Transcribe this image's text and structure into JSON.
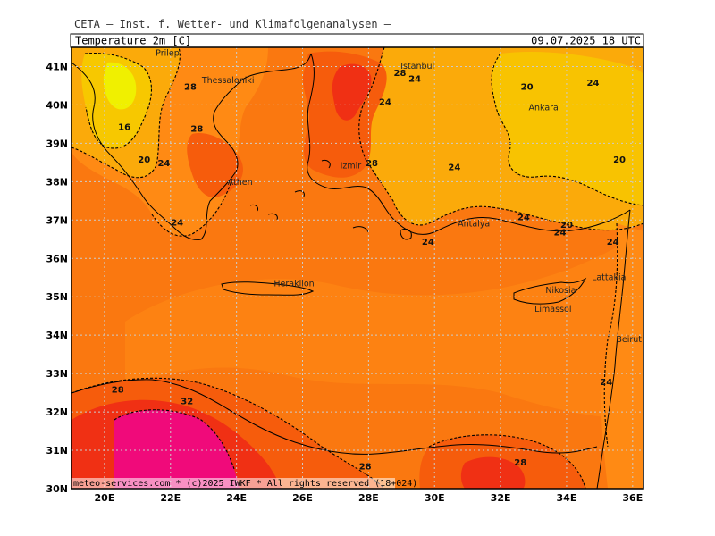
{
  "header": {
    "institution": "CETA — Inst. f. Wetter- und Klimafolgenanalysen —",
    "variable": "Temperature 2m [C]",
    "valid_time": "09.07.2025 18 UTC"
  },
  "footer": {
    "credit": "meteo-services.com * (c)2025 IWKF * All rights reserved (18+024)"
  },
  "axes": {
    "lon_labels": [
      "20E",
      "22E",
      "24E",
      "26E",
      "28E",
      "30E",
      "32E",
      "34E",
      "36E"
    ],
    "lat_labels": [
      "41N",
      "40N",
      "39N",
      "38N",
      "37N",
      "36N",
      "35N",
      "34N",
      "33N",
      "32N",
      "31N",
      "30N"
    ]
  },
  "cities": [
    {
      "name": "Prilep",
      "lon": 21.55,
      "lat": 41.35
    },
    {
      "name": "Thessaloniki",
      "lon": 22.95,
      "lat": 40.64
    },
    {
      "name": "Istanbul",
      "lon": 28.97,
      "lat": 41.01
    },
    {
      "name": "Ankara",
      "lon": 32.85,
      "lat": 39.93
    },
    {
      "name": "Izmir",
      "lon": 27.14,
      "lat": 38.42
    },
    {
      "name": "Athen",
      "lon": 23.73,
      "lat": 37.98
    },
    {
      "name": "Antalya",
      "lon": 30.7,
      "lat": 36.9
    },
    {
      "name": "Lattakia",
      "lon": 35.8,
      "lat": 35.5
    },
    {
      "name": "Nikosia",
      "lon": 33.36,
      "lat": 35.17
    },
    {
      "name": "Limassol",
      "lon": 33.03,
      "lat": 34.68
    },
    {
      "name": "Heraklion",
      "lon": 25.13,
      "lat": 35.34
    },
    {
      "name": "Beirut",
      "lon": 35.5,
      "lat": 33.89
    }
  ],
  "isotherm_labels": [
    {
      "value": "28",
      "lon": 22.6,
      "lat": 40.4
    },
    {
      "value": "16",
      "lon": 20.6,
      "lat": 39.35
    },
    {
      "value": "20",
      "lon": 21.2,
      "lat": 38.5
    },
    {
      "value": "24",
      "lon": 21.8,
      "lat": 38.4
    },
    {
      "value": "28",
      "lon": 22.8,
      "lat": 39.3
    },
    {
      "value": "24",
      "lon": 22.2,
      "lat": 36.85
    },
    {
      "value": "28",
      "lon": 28.95,
      "lat": 40.75
    },
    {
      "value": "24",
      "lon": 29.4,
      "lat": 40.6
    },
    {
      "value": "24",
      "lon": 28.5,
      "lat": 40.0
    },
    {
      "value": "20",
      "lon": 32.8,
      "lat": 40.4
    },
    {
      "value": "24",
      "lon": 34.8,
      "lat": 40.5
    },
    {
      "value": "28",
      "lon": 28.1,
      "lat": 38.4
    },
    {
      "value": "24",
      "lon": 30.6,
      "lat": 38.3
    },
    {
      "value": "20",
      "lon": 35.6,
      "lat": 38.5
    },
    {
      "value": "24",
      "lon": 32.7,
      "lat": 37.0
    },
    {
      "value": "20",
      "lon": 34.0,
      "lat": 36.8
    },
    {
      "value": "24",
      "lon": 33.8,
      "lat": 36.6
    },
    {
      "value": "24",
      "lon": 29.8,
      "lat": 36.35
    },
    {
      "value": "24",
      "lon": 35.4,
      "lat": 36.35
    },
    {
      "value": "28",
      "lon": 20.4,
      "lat": 32.5
    },
    {
      "value": "32",
      "lon": 22.5,
      "lat": 32.2
    },
    {
      "value": "28",
      "lon": 27.9,
      "lat": 30.5
    },
    {
      "value": "28",
      "lon": 32.6,
      "lat": 30.6
    },
    {
      "value": "24",
      "lon": 35.2,
      "lat": 32.7
    }
  ],
  "colors": {
    "t_lt16": "#f0f000",
    "t_16_20": "#f7c800",
    "t_20_24": "#fbaa0a",
    "t_24_26": "#ff8a14",
    "t_26_28": "#fa7810",
    "t_28_30": "#f65c0c",
    "t_30_32": "#f03014",
    "t_gt32": "#f00a7a"
  }
}
